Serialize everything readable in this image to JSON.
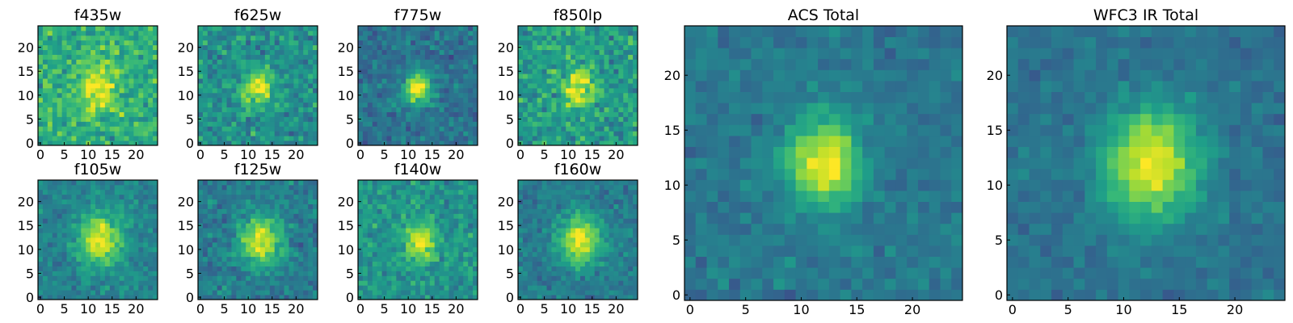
{
  "figure": {
    "colormap": "viridis",
    "colormap_stops": [
      "#440154",
      "#482878",
      "#3e4989",
      "#31688e",
      "#26828e",
      "#1f9e89",
      "#35b779",
      "#6ece58",
      "#b5de2b",
      "#fde725"
    ],
    "background": "#ffffff"
  },
  "chart_data": [
    {
      "type": "heatmap",
      "title": "f435w",
      "grid_size": 25,
      "xlim": [
        -0.5,
        24.5
      ],
      "ylim": [
        -0.5,
        24.5
      ],
      "xticks": [
        0,
        5,
        10,
        15,
        20
      ],
      "yticks": [
        0,
        5,
        10,
        15,
        20
      ],
      "source": {
        "cx": 12.0,
        "cy": 12.0,
        "peak": 0.35,
        "sigma": 3.0,
        "baseline": 0.62,
        "noise": 0.28,
        "seed": 11
      }
    },
    {
      "type": "heatmap",
      "title": "f625w",
      "grid_size": 25,
      "xlim": [
        -0.5,
        24.5
      ],
      "ylim": [
        -0.5,
        24.5
      ],
      "xticks": [
        0,
        5,
        10,
        15,
        20
      ],
      "yticks": [
        0,
        5,
        10,
        15,
        20
      ],
      "source": {
        "cx": 12.0,
        "cy": 11.5,
        "peak": 0.45,
        "sigma": 2.2,
        "baseline": 0.5,
        "noise": 0.26,
        "seed": 23
      }
    },
    {
      "type": "heatmap",
      "title": "f775w",
      "grid_size": 25,
      "xlim": [
        -0.5,
        24.5
      ],
      "ylim": [
        -0.5,
        24.5
      ],
      "xticks": [
        0,
        5,
        10,
        15,
        20
      ],
      "yticks": [
        0,
        5,
        10,
        15,
        20
      ],
      "source": {
        "cx": 12.0,
        "cy": 11.5,
        "peak": 0.6,
        "sigma": 2.0,
        "baseline": 0.38,
        "noise": 0.2,
        "seed": 37
      }
    },
    {
      "type": "heatmap",
      "title": "f850lp",
      "grid_size": 25,
      "xlim": [
        -0.5,
        24.5
      ],
      "ylim": [
        -0.5,
        24.5
      ],
      "xticks": [
        0,
        5,
        10,
        15,
        20
      ],
      "yticks": [
        0,
        5,
        10,
        15,
        20
      ],
      "source": {
        "cx": 12.0,
        "cy": 11.5,
        "peak": 0.45,
        "sigma": 2.2,
        "baseline": 0.55,
        "noise": 0.28,
        "seed": 41
      }
    },
    {
      "type": "heatmap",
      "title": "f105w",
      "grid_size": 25,
      "xlim": [
        -0.5,
        24.5
      ],
      "ylim": [
        -0.5,
        24.5
      ],
      "xticks": [
        0,
        5,
        10,
        15,
        20
      ],
      "yticks": [
        0,
        5,
        10,
        15,
        20
      ],
      "source": {
        "cx": 12.5,
        "cy": 12.0,
        "peak": 0.55,
        "sigma": 3.0,
        "baseline": 0.45,
        "noise": 0.18,
        "seed": 53
      }
    },
    {
      "type": "heatmap",
      "title": "f125w",
      "grid_size": 25,
      "xlim": [
        -0.5,
        24.5
      ],
      "ylim": [
        -0.5,
        24.5
      ],
      "xticks": [
        0,
        5,
        10,
        15,
        20
      ],
      "yticks": [
        0,
        5,
        10,
        15,
        20
      ],
      "source": {
        "cx": 12.5,
        "cy": 12.0,
        "peak": 0.55,
        "sigma": 3.0,
        "baseline": 0.42,
        "noise": 0.2,
        "seed": 67
      }
    },
    {
      "type": "heatmap",
      "title": "f140w",
      "grid_size": 25,
      "xlim": [
        -0.5,
        24.5
      ],
      "ylim": [
        -0.5,
        24.5
      ],
      "xticks": [
        0,
        5,
        10,
        15,
        20
      ],
      "yticks": [
        0,
        5,
        10,
        15,
        20
      ],
      "source": {
        "cx": 12.5,
        "cy": 11.5,
        "peak": 0.45,
        "sigma": 2.2,
        "baseline": 0.52,
        "noise": 0.22,
        "seed": 79
      }
    },
    {
      "type": "heatmap",
      "title": "f160w",
      "grid_size": 25,
      "xlim": [
        -0.5,
        24.5
      ],
      "ylim": [
        -0.5,
        24.5
      ],
      "xticks": [
        0,
        5,
        10,
        15,
        20
      ],
      "yticks": [
        0,
        5,
        10,
        15,
        20
      ],
      "source": {
        "cx": 12.5,
        "cy": 12.0,
        "peak": 0.55,
        "sigma": 3.0,
        "baseline": 0.42,
        "noise": 0.17,
        "seed": 83
      }
    },
    {
      "type": "heatmap",
      "title": "ACS Total",
      "grid_size": 25,
      "xlim": [
        -0.5,
        24.5
      ],
      "ylim": [
        -0.5,
        24.5
      ],
      "xticks": [
        0,
        5,
        10,
        15,
        20
      ],
      "yticks": [
        0,
        5,
        10,
        15,
        20
      ],
      "source": {
        "cx": 12.0,
        "cy": 12.0,
        "peak": 0.62,
        "sigma": 2.2,
        "baseline": 0.4,
        "noise": 0.14,
        "seed": 97
      }
    },
    {
      "type": "heatmap",
      "title": "WFC3 IR Total",
      "grid_size": 25,
      "xlim": [
        -0.5,
        24.5
      ],
      "ylim": [
        -0.5,
        24.5
      ],
      "xticks": [
        0,
        5,
        10,
        15,
        20
      ],
      "yticks": [
        0,
        5,
        10,
        15,
        20
      ],
      "source": {
        "cx": 12.5,
        "cy": 12.0,
        "peak": 0.6,
        "sigma": 3.0,
        "baseline": 0.38,
        "noise": 0.12,
        "seed": 101
      }
    }
  ]
}
